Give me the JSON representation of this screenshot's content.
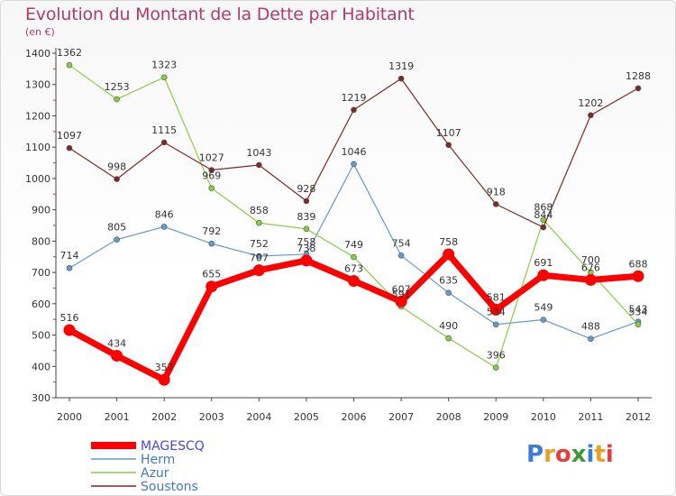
{
  "header": {
    "title": "Evolution du Montant de la Dette par Habitant",
    "subtitle": "(en €)"
  },
  "logo": {
    "text": "Proxiti",
    "colors": [
      "#3a7fd5",
      "#e8a020",
      "#e04040",
      "#3a9a3a",
      "#3a7fd5",
      "#e8a020",
      "#e04040"
    ]
  },
  "chart_data": {
    "type": "line",
    "x": [
      2000,
      2001,
      2002,
      2003,
      2004,
      2005,
      2006,
      2007,
      2008,
      2009,
      2010,
      2011,
      2012
    ],
    "ylim": [
      300,
      1400
    ],
    "yticks": [
      300,
      400,
      500,
      600,
      700,
      800,
      900,
      1000,
      1100,
      1200,
      1300,
      1400
    ],
    "grid": false,
    "legend": "bottom-left",
    "series": [
      {
        "name": "MAGESCQ",
        "color": "#ff0000",
        "width": 7,
        "values": [
          516,
          434,
          357,
          655,
          707,
          738,
          673,
          607,
          758,
          581,
          691,
          676,
          688
        ],
        "labels": [
          "516",
          "434",
          "357",
          "655",
          "707",
          "738",
          "673",
          "607",
          "758",
          "581",
          "691",
          "676",
          "688"
        ]
      },
      {
        "name": "Herm",
        "color": "#6699cc",
        "width": 1.2,
        "values": [
          714,
          805,
          846,
          792,
          752,
          758,
          1046,
          754,
          635,
          534,
          549,
          488,
          543
        ],
        "labels": [
          "714",
          "805",
          "846",
          "792",
          "752",
          "758",
          "1046",
          "754",
          "635",
          "534",
          "549",
          "488",
          "543"
        ]
      },
      {
        "name": "Azur",
        "color": "#88cc44",
        "width": 1.2,
        "values": [
          1362,
          1253,
          1323,
          969,
          858,
          839,
          749,
          591,
          490,
          396,
          868,
          700,
          534
        ],
        "labels": [
          "1362",
          "1253",
          "1323",
          "969",
          "858",
          "839",
          "749",
          "591",
          "490",
          "396",
          "868",
          "700",
          "534"
        ]
      },
      {
        "name": "Soustons",
        "color": "#7a2a2a",
        "width": 1.2,
        "values": [
          1097,
          998,
          1115,
          1027,
          1043,
          928,
          1219,
          1319,
          1107,
          918,
          844,
          1202,
          1288
        ],
        "labels": [
          "1097",
          "998",
          "1115",
          "1027",
          "1043",
          "928",
          "1219",
          "1319",
          "1107",
          "918",
          "844",
          "1202",
          "1288"
        ]
      }
    ]
  }
}
